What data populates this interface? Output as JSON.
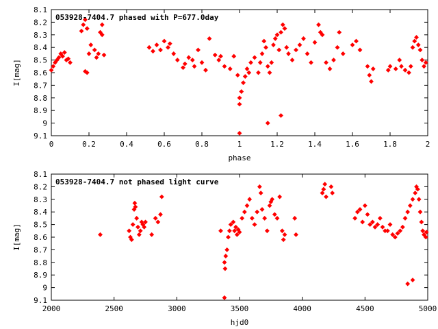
{
  "chart_data": [
    {
      "type": "scatter",
      "title": "053928-7404.7 phased with P=677.0day",
      "xlabel": "phase",
      "ylabel": "I[mag]",
      "xlim": [
        0,
        2
      ],
      "ylim": [
        8.1,
        9.1
      ],
      "y_inverted": true,
      "grid": false,
      "xticks": [
        0,
        0.2,
        0.4,
        0.6,
        0.8,
        1,
        1.2,
        1.4,
        1.6,
        1.8,
        2
      ],
      "xtick_labels": [
        "0",
        "0.2",
        "0.4",
        "0.6",
        "0.8",
        "1",
        "1.2",
        "1.4",
        "1.6",
        "1.8",
        "2"
      ],
      "yticks": [
        8.1,
        8.2,
        8.3,
        8.4,
        8.5,
        8.6,
        8.7,
        8.8,
        8.9,
        9.0,
        9.1
      ],
      "ytick_labels": [
        "8.1",
        "8.2",
        "8.3",
        "8.4",
        "8.5",
        "8.6",
        "8.7",
        "8.8",
        "8.9",
        "9",
        "9.1"
      ],
      "marker_color": "#ff0000",
      "series": [
        {
          "points": [
            [
              0.0,
              8.58
            ],
            [
              0.01,
              8.55
            ],
            [
              0.02,
              8.52
            ],
            [
              0.03,
              8.5
            ],
            [
              0.04,
              8.48
            ],
            [
              0.05,
              8.45
            ],
            [
              0.06,
              8.47
            ],
            [
              0.07,
              8.44
            ],
            [
              0.08,
              8.5
            ],
            [
              0.09,
              8.49
            ],
            [
              0.1,
              8.52
            ],
            [
              0.16,
              8.27
            ],
            [
              0.17,
              8.22
            ],
            [
              0.18,
              8.18
            ],
            [
              0.19,
              8.25
            ],
            [
              0.18,
              8.59
            ],
            [
              0.19,
              8.6
            ],
            [
              0.2,
              8.45
            ],
            [
              0.21,
              8.38
            ],
            [
              0.23,
              8.42
            ],
            [
              0.24,
              8.48
            ],
            [
              0.25,
              8.45
            ],
            [
              0.26,
              8.28
            ],
            [
              0.27,
              8.22
            ],
            [
              0.27,
              8.3
            ],
            [
              0.28,
              8.46
            ],
            [
              0.52,
              8.4
            ],
            [
              0.54,
              8.43
            ],
            [
              0.56,
              8.38
            ],
            [
              0.58,
              8.42
            ],
            [
              0.6,
              8.35
            ],
            [
              0.62,
              8.4
            ],
            [
              0.63,
              8.37
            ],
            [
              0.65,
              8.45
            ],
            [
              0.67,
              8.5
            ],
            [
              0.7,
              8.56
            ],
            [
              0.71,
              8.53
            ],
            [
              0.73,
              8.48
            ],
            [
              0.75,
              8.5
            ],
            [
              0.76,
              8.55
            ],
            [
              0.78,
              8.42
            ],
            [
              0.8,
              8.52
            ],
            [
              0.82,
              8.58
            ],
            [
              0.84,
              8.33
            ],
            [
              0.87,
              8.46
            ],
            [
              0.89,
              8.5
            ],
            [
              0.9,
              8.47
            ],
            [
              0.92,
              8.55
            ],
            [
              0.95,
              8.57
            ],
            [
              0.97,
              8.47
            ],
            [
              0.99,
              8.62
            ],
            [
              1.0,
              8.8
            ],
            [
              1.0,
              8.85
            ],
            [
              1.01,
              8.75
            ],
            [
              1.02,
              8.68
            ],
            [
              1.03,
              8.63
            ],
            [
              1.04,
              8.57
            ],
            [
              1.05,
              8.6
            ],
            [
              1.06,
              8.52
            ],
            [
              1.08,
              8.48
            ],
            [
              1.1,
              8.6
            ],
            [
              1.11,
              8.52
            ],
            [
              1.12,
              8.45
            ],
            [
              1.13,
              8.35
            ],
            [
              1.14,
              8.4
            ],
            [
              1.15,
              8.55
            ],
            [
              1.16,
              8.6
            ],
            [
              1.17,
              8.52
            ],
            [
              1.18,
              8.38
            ],
            [
              1.19,
              8.33
            ],
            [
              1.2,
              8.3
            ],
            [
              1.21,
              8.42
            ],
            [
              1.22,
              8.28
            ],
            [
              1.23,
              8.22
            ],
            [
              1.24,
              8.25
            ],
            [
              1.25,
              8.4
            ],
            [
              1.26,
              8.45
            ],
            [
              1.28,
              8.5
            ],
            [
              1.3,
              8.42
            ],
            [
              1.32,
              8.38
            ],
            [
              1.34,
              8.33
            ],
            [
              1.36,
              8.45
            ],
            [
              1.38,
              8.52
            ],
            [
              1.4,
              8.36
            ],
            [
              1.42,
              8.22
            ],
            [
              1.43,
              8.28
            ],
            [
              1.44,
              8.3
            ],
            [
              1.46,
              8.52
            ],
            [
              1.48,
              8.57
            ],
            [
              1.5,
              8.5
            ],
            [
              1.52,
              8.4
            ],
            [
              1.53,
              8.28
            ],
            [
              1.55,
              8.45
            ],
            [
              1.6,
              8.38
            ],
            [
              1.62,
              8.35
            ],
            [
              1.64,
              8.42
            ],
            [
              1.68,
              8.55
            ],
            [
              1.69,
              8.62
            ],
            [
              1.7,
              8.67
            ],
            [
              1.71,
              8.57
            ],
            [
              1.79,
              8.58
            ],
            [
              1.8,
              8.55
            ],
            [
              1.83,
              8.57
            ],
            [
              1.85,
              8.5
            ],
            [
              1.86,
              8.55
            ],
            [
              1.88,
              8.58
            ],
            [
              1.92,
              8.4
            ],
            [
              1.93,
              8.35
            ],
            [
              1.94,
              8.32
            ],
            [
              1.95,
              8.38
            ],
            [
              1.96,
              8.42
            ],
            [
              1.97,
              8.5
            ],
            [
              1.98,
              8.55
            ],
            [
              1.99,
              8.52
            ],
            [
              1.9,
              8.6
            ],
            [
              1.91,
              8.55
            ],
            [
              1.0,
              9.08
            ],
            [
              1.15,
              9.0
            ],
            [
              1.22,
              8.94
            ]
          ]
        }
      ]
    },
    {
      "type": "scatter",
      "title": "053928-7404.7 not phased light curve",
      "xlabel": "hjd0",
      "ylabel": "I[mag]",
      "xlim": [
        2000,
        5000
      ],
      "ylim": [
        8.1,
        9.1
      ],
      "y_inverted": true,
      "grid": false,
      "xticks": [
        2000,
        2500,
        3000,
        3500,
        4000,
        4500,
        5000
      ],
      "xtick_labels": [
        "2000",
        "2500",
        "3000",
        "3500",
        "4000",
        "4500",
        "5000"
      ],
      "yticks": [
        8.1,
        8.2,
        8.3,
        8.4,
        8.5,
        8.6,
        8.7,
        8.8,
        8.9,
        9.0,
        9.1
      ],
      "ytick_labels": [
        "8.1",
        "8.2",
        "8.3",
        "8.4",
        "8.5",
        "8.6",
        "8.7",
        "8.8",
        "8.9",
        "9",
        "9.1"
      ],
      "marker_color": "#ff0000",
      "series": [
        {
          "points": [
            [
              2390,
              8.58
            ],
            [
              2620,
              8.55
            ],
            [
              2630,
              8.6
            ],
            [
              2640,
              8.62
            ],
            [
              2650,
              8.5
            ],
            [
              2660,
              8.38
            ],
            [
              2665,
              8.33
            ],
            [
              2670,
              8.36
            ],
            [
              2680,
              8.45
            ],
            [
              2690,
              8.52
            ],
            [
              2700,
              8.58
            ],
            [
              2710,
              8.55
            ],
            [
              2720,
              8.48
            ],
            [
              2730,
              8.5
            ],
            [
              2740,
              8.52
            ],
            [
              2750,
              8.48
            ],
            [
              2800,
              8.58
            ],
            [
              2830,
              8.45
            ],
            [
              2850,
              8.48
            ],
            [
              2870,
              8.42
            ],
            [
              2880,
              8.28
            ],
            [
              3350,
              8.55
            ],
            [
              3380,
              8.8
            ],
            [
              3385,
              8.85
            ],
            [
              3390,
              8.75
            ],
            [
              3400,
              8.7
            ],
            [
              3410,
              8.6
            ],
            [
              3420,
              8.55
            ],
            [
              3430,
              8.5
            ],
            [
              3450,
              8.48
            ],
            [
              3460,
              8.55
            ],
            [
              3470,
              8.52
            ],
            [
              3480,
              8.58
            ],
            [
              3490,
              8.54
            ],
            [
              3500,
              8.56
            ],
            [
              3520,
              8.45
            ],
            [
              3540,
              8.4
            ],
            [
              3560,
              8.35
            ],
            [
              3580,
              8.3
            ],
            [
              3600,
              8.45
            ],
            [
              3620,
              8.5
            ],
            [
              3640,
              8.4
            ],
            [
              3660,
              8.2
            ],
            [
              3670,
              8.25
            ],
            [
              3680,
              8.38
            ],
            [
              3700,
              8.45
            ],
            [
              3720,
              8.55
            ],
            [
              3740,
              8.35
            ],
            [
              3750,
              8.32
            ],
            [
              3760,
              8.3
            ],
            [
              3780,
              8.42
            ],
            [
              3800,
              8.45
            ],
            [
              3820,
              8.28
            ],
            [
              3840,
              8.55
            ],
            [
              3850,
              8.62
            ],
            [
              3860,
              8.58
            ],
            [
              3940,
              8.45
            ],
            [
              3950,
              8.58
            ],
            [
              4160,
              8.25
            ],
            [
              4170,
              8.22
            ],
            [
              4180,
              8.18
            ],
            [
              4190,
              8.28
            ],
            [
              4230,
              8.2
            ],
            [
              4240,
              8.25
            ],
            [
              4420,
              8.45
            ],
            [
              4440,
              8.4
            ],
            [
              4460,
              8.38
            ],
            [
              4480,
              8.48
            ],
            [
              4500,
              8.35
            ],
            [
              4520,
              8.42
            ],
            [
              4540,
              8.5
            ],
            [
              4560,
              8.48
            ],
            [
              4580,
              8.52
            ],
            [
              4600,
              8.5
            ],
            [
              4620,
              8.45
            ],
            [
              4640,
              8.52
            ],
            [
              4660,
              8.55
            ],
            [
              4680,
              8.55
            ],
            [
              4700,
              8.5
            ],
            [
              4720,
              8.58
            ],
            [
              4740,
              8.6
            ],
            [
              4760,
              8.57
            ],
            [
              4780,
              8.55
            ],
            [
              4800,
              8.52
            ],
            [
              4820,
              8.45
            ],
            [
              4840,
              8.4
            ],
            [
              4860,
              8.35
            ],
            [
              4880,
              8.3
            ],
            [
              4900,
              8.25
            ],
            [
              4910,
              8.2
            ],
            [
              4920,
              8.22
            ],
            [
              4930,
              8.3
            ],
            [
              4940,
              8.4
            ],
            [
              4950,
              8.48
            ],
            [
              4960,
              8.55
            ],
            [
              4970,
              8.58
            ],
            [
              4985,
              8.6
            ],
            [
              4990,
              8.56
            ],
            [
              3380,
              9.08
            ],
            [
              4840,
              8.97
            ],
            [
              4880,
              8.94
            ]
          ]
        }
      ]
    }
  ]
}
